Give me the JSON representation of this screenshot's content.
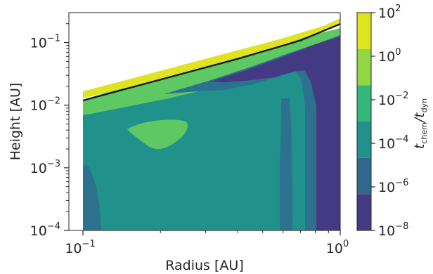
{
  "chart_data": {
    "type": "contour",
    "xlabel": "Radius [AU]",
    "ylabel": "Height [AU]",
    "x_scale": "log",
    "y_scale": "log",
    "xlim": [
      0.1,
      1.0
    ],
    "ylim": [
      0.0001,
      0.3
    ],
    "x_ticks": [
      {
        "value": 0.1,
        "label": "10",
        "exp": "−1"
      },
      {
        "value": 1.0,
        "label": "10",
        "exp": "0"
      }
    ],
    "y_ticks": [
      {
        "value": 0.0001,
        "label": "10",
        "exp": "−4"
      },
      {
        "value": 0.001,
        "label": "10",
        "exp": "−3"
      },
      {
        "value": 0.01,
        "label": "10",
        "exp": "−2"
      },
      {
        "value": 0.1,
        "label": "10",
        "exp": "−1"
      }
    ],
    "colorbar": {
      "label_main": "t",
      "label_sub1": "chem",
      "label_sep": "/t",
      "label_sub2": "dyn",
      "levels": [
        {
          "value": 1e-08,
          "label": "10",
          "exp": "−8"
        },
        {
          "value": 1e-06,
          "label": "10",
          "exp": "−6"
        },
        {
          "value": 0.0001,
          "label": "10",
          "exp": "−4"
        },
        {
          "value": 0.01,
          "label": "10",
          "exp": "−2"
        },
        {
          "value": 1,
          "label": "10",
          "exp": "0"
        },
        {
          "value": 100,
          "label": "10",
          "exp": "2"
        }
      ],
      "colors": [
        "#443983",
        "#31688e",
        "#21918c",
        "#35b779",
        "#90d743",
        "#e0e31f"
      ]
    },
    "boundary_line": {
      "color": "#1a1a1a",
      "points": [
        [
          0.1,
          0.0119
        ],
        [
          0.2,
          0.0256
        ],
        [
          0.4,
          0.055
        ],
        [
          0.7,
          0.108
        ],
        [
          1.0,
          0.198
        ]
      ]
    }
  }
}
